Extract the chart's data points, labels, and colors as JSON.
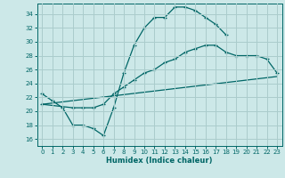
{
  "xlabel": "Humidex (Indice chaleur)",
  "bg_color": "#cce8e8",
  "grid_color": "#aacccc",
  "line_color": "#006666",
  "xlim": [
    -0.5,
    23.5
  ],
  "ylim": [
    15,
    35.5
  ],
  "xticks": [
    0,
    1,
    2,
    3,
    4,
    5,
    6,
    7,
    8,
    9,
    10,
    11,
    12,
    13,
    14,
    15,
    16,
    17,
    18,
    19,
    20,
    21,
    22,
    23
  ],
  "yticks": [
    16,
    18,
    20,
    22,
    24,
    26,
    28,
    30,
    32,
    34
  ],
  "line1_x": [
    0,
    1,
    2,
    3,
    4,
    5,
    6,
    7,
    8,
    9,
    10,
    11,
    12,
    13,
    14,
    15,
    16,
    17,
    18
  ],
  "line1_y": [
    22.5,
    21.5,
    20.5,
    18.0,
    18.0,
    17.5,
    16.5,
    20.5,
    25.5,
    29.5,
    32.0,
    33.5,
    33.5,
    35.0,
    35.0,
    34.5,
    33.5,
    32.5,
    31.0
  ],
  "line2_x": [
    0,
    3,
    4,
    5,
    6,
    7,
    8,
    9,
    10,
    11,
    12,
    13,
    14,
    15,
    16,
    17,
    18,
    19,
    20,
    21,
    22,
    23
  ],
  "line2_y": [
    21.0,
    20.5,
    20.5,
    20.5,
    21.0,
    22.5,
    23.5,
    24.5,
    25.5,
    26.0,
    27.0,
    27.5,
    28.5,
    29.0,
    29.5,
    29.5,
    28.5,
    28.0,
    28.0,
    28.0,
    27.5,
    25.5
  ],
  "line3_x": [
    0,
    23
  ],
  "line3_y": [
    21.0,
    25.0
  ]
}
